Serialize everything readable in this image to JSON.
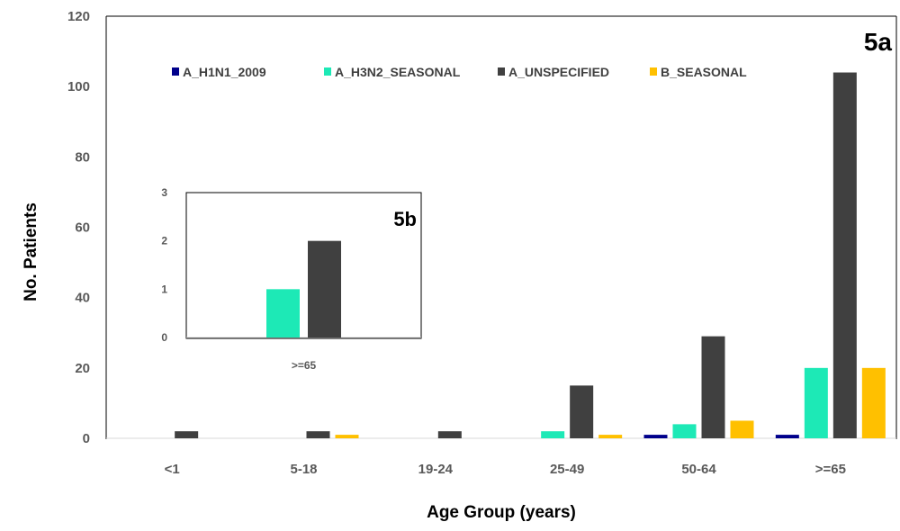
{
  "chart_data": [
    {
      "type": "bar",
      "panel_label": "5a",
      "title": "",
      "xlabel": "Age Group (years)",
      "ylabel": "No. Patients",
      "ylim": [
        0,
        120
      ],
      "yticks": [
        0,
        20,
        40,
        60,
        80,
        100,
        120
      ],
      "grid": false,
      "legend_position": "top",
      "categories": [
        "<1",
        "5-18",
        "19-24",
        "25-49",
        "50-64",
        ">=65"
      ],
      "series": [
        {
          "name": "A_H1N1_2009",
          "color": "#00008b",
          "values": [
            0,
            0,
            0,
            0,
            1,
            1
          ]
        },
        {
          "name": "A_H3N2_SEASONAL",
          "color": "#1de9b6",
          "values": [
            0,
            0,
            0,
            2,
            4,
            20
          ]
        },
        {
          "name": "A_UNSPECIFIED",
          "color": "#404040",
          "values": [
            2,
            2,
            2,
            15,
            29,
            104
          ]
        },
        {
          "name": "B_SEASONAL",
          "color": "#ffc000",
          "values": [
            0,
            1,
            0,
            1,
            5,
            20
          ]
        }
      ]
    },
    {
      "type": "bar",
      "panel_label": "5b",
      "title": "",
      "ylim": [
        0,
        3
      ],
      "yticks": [
        0,
        1,
        2,
        3
      ],
      "grid": false,
      "categories": [
        ">=65"
      ],
      "series": [
        {
          "name": "A_H3N2_SEASONAL",
          "color": "#1de9b6",
          "values": [
            1
          ]
        },
        {
          "name": "A_UNSPECIFIED",
          "color": "#404040",
          "values": [
            2
          ]
        }
      ]
    }
  ]
}
